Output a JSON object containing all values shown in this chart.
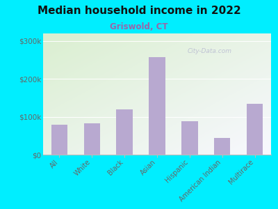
{
  "title": "Median household income in 2022",
  "subtitle": "Griswold, CT",
  "categories": [
    "All",
    "White",
    "Black",
    "Asian",
    "Hispanic",
    "American Indian",
    "Multirace"
  ],
  "values": [
    80000,
    82000,
    120000,
    258000,
    88000,
    44000,
    135000
  ],
  "bar_color": "#b8a9d0",
  "background_outer": "#00eeff",
  "background_inner_top_left": "#daefd0",
  "background_inner_bottom_right": "#f8f8ff",
  "title_color": "#111111",
  "subtitle_color": "#9966aa",
  "tick_color": "#666666",
  "ylim": [
    0,
    320000
  ],
  "yticks": [
    0,
    100000,
    200000,
    300000
  ],
  "ytick_labels": [
    "$0",
    "$100k",
    "$200k",
    "$300k"
  ],
  "watermark": "City-Data.com"
}
